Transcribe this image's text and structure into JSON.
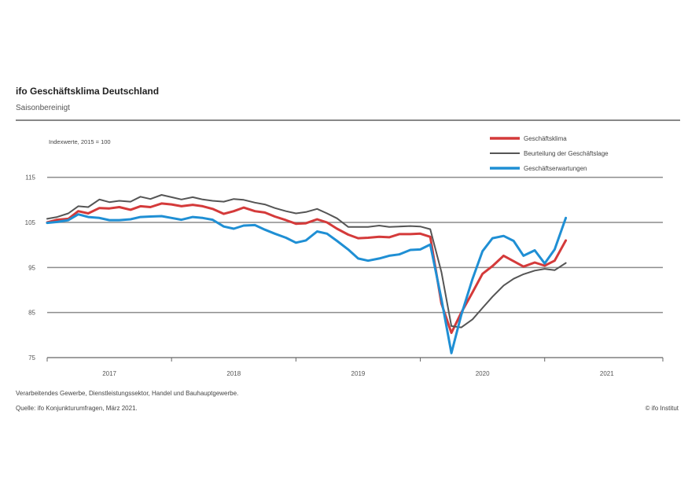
{
  "header": {
    "title": "ifo Geschäftsklima Deutschland",
    "subtitle": "Saisonbereinigt"
  },
  "footer": {
    "note": "Verarbeitendes Gewerbe, Dienstleistungssektor, Handel und Bauhauptgewerbe.",
    "source": "Quelle: ifo Konjunkturumfragen, März 2021.",
    "copyright": "© ifo Institut"
  },
  "chart_data": {
    "type": "line",
    "index_note": "Indexwerte, 2015 = 100",
    "ylim": [
      75,
      120
    ],
    "yticks": [
      75,
      85,
      95,
      105,
      115
    ],
    "ytick_labels": [
      "75",
      "85",
      "95",
      "105",
      "115"
    ],
    "xlim": [
      2017.0,
      2021.95
    ],
    "xticks": [
      2017.5,
      2018.5,
      2019.5,
      2020.5,
      2021.5
    ],
    "xtick_labels": [
      "2017",
      "2018",
      "2019",
      "2020",
      "2021"
    ],
    "grid": true,
    "legend_position": "top-right",
    "series": [
      {
        "name": "Geschäftsklima",
        "color": "#d43a3a",
        "values": [
          [
            2017.0,
            105.0
          ],
          [
            2017.08,
            105.6
          ],
          [
            2017.17,
            105.8
          ],
          [
            2017.25,
            107.5
          ],
          [
            2017.33,
            107.0
          ],
          [
            2017.42,
            108.2
          ],
          [
            2017.5,
            108.1
          ],
          [
            2017.58,
            108.4
          ],
          [
            2017.67,
            107.8
          ],
          [
            2017.75,
            108.6
          ],
          [
            2017.83,
            108.4
          ],
          [
            2017.92,
            109.2
          ],
          [
            2018.0,
            109.0
          ],
          [
            2018.08,
            108.6
          ],
          [
            2018.17,
            108.9
          ],
          [
            2018.25,
            108.6
          ],
          [
            2018.33,
            108.0
          ],
          [
            2018.42,
            106.9
          ],
          [
            2018.5,
            107.5
          ],
          [
            2018.58,
            108.3
          ],
          [
            2018.67,
            107.5
          ],
          [
            2018.75,
            107.2
          ],
          [
            2018.83,
            106.3
          ],
          [
            2018.92,
            105.5
          ],
          [
            2019.0,
            104.7
          ],
          [
            2019.08,
            104.8
          ],
          [
            2019.17,
            105.7
          ],
          [
            2019.25,
            105.0
          ],
          [
            2019.33,
            103.6
          ],
          [
            2019.42,
            102.3
          ],
          [
            2019.5,
            101.5
          ],
          [
            2019.58,
            101.6
          ],
          [
            2019.67,
            101.8
          ],
          [
            2019.75,
            101.7
          ],
          [
            2019.83,
            102.4
          ],
          [
            2019.92,
            102.4
          ],
          [
            2020.0,
            102.5
          ],
          [
            2020.08,
            101.8
          ],
          [
            2020.17,
            87.0
          ],
          [
            2020.25,
            80.5
          ],
          [
            2020.33,
            85.0
          ],
          [
            2020.42,
            89.5
          ],
          [
            2020.5,
            93.6
          ],
          [
            2020.58,
            95.3
          ],
          [
            2020.67,
            97.6
          ],
          [
            2020.75,
            96.4
          ],
          [
            2020.83,
            95.2
          ],
          [
            2020.92,
            96.1
          ],
          [
            2021.0,
            95.4
          ],
          [
            2021.08,
            96.5
          ],
          [
            2021.17,
            101.0
          ]
        ]
      },
      {
        "name": "Beurteilung der Geschäftslage",
        "color": "#555555",
        "values": [
          [
            2017.0,
            105.8
          ],
          [
            2017.08,
            106.2
          ],
          [
            2017.17,
            107.0
          ],
          [
            2017.25,
            108.6
          ],
          [
            2017.33,
            108.4
          ],
          [
            2017.42,
            110.1
          ],
          [
            2017.5,
            109.5
          ],
          [
            2017.58,
            109.8
          ],
          [
            2017.67,
            109.6
          ],
          [
            2017.75,
            110.7
          ],
          [
            2017.83,
            110.2
          ],
          [
            2017.92,
            111.1
          ],
          [
            2018.0,
            110.6
          ],
          [
            2018.08,
            110.1
          ],
          [
            2018.17,
            110.6
          ],
          [
            2018.25,
            110.1
          ],
          [
            2018.33,
            109.8
          ],
          [
            2018.42,
            109.6
          ],
          [
            2018.5,
            110.2
          ],
          [
            2018.58,
            110.0
          ],
          [
            2018.67,
            109.4
          ],
          [
            2018.75,
            109.0
          ],
          [
            2018.83,
            108.2
          ],
          [
            2018.92,
            107.5
          ],
          [
            2019.0,
            107.0
          ],
          [
            2019.08,
            107.3
          ],
          [
            2019.17,
            108.0
          ],
          [
            2019.25,
            107.0
          ],
          [
            2019.33,
            105.9
          ],
          [
            2019.42,
            104.0
          ],
          [
            2019.5,
            104.0
          ],
          [
            2019.58,
            104.0
          ],
          [
            2019.67,
            104.3
          ],
          [
            2019.75,
            104.0
          ],
          [
            2019.83,
            104.1
          ],
          [
            2019.92,
            104.2
          ],
          [
            2020.0,
            104.1
          ],
          [
            2020.08,
            103.5
          ],
          [
            2020.17,
            94.0
          ],
          [
            2020.25,
            82.0
          ],
          [
            2020.33,
            81.7
          ],
          [
            2020.42,
            83.5
          ],
          [
            2020.5,
            86.0
          ],
          [
            2020.58,
            88.5
          ],
          [
            2020.67,
            91.0
          ],
          [
            2020.75,
            92.5
          ],
          [
            2020.83,
            93.5
          ],
          [
            2020.92,
            94.3
          ],
          [
            2021.0,
            94.7
          ],
          [
            2021.08,
            94.4
          ],
          [
            2021.17,
            96.0
          ]
        ]
      },
      {
        "name": "Geschäftserwartungen",
        "color": "#1f8fd4",
        "values": [
          [
            2017.0,
            104.9
          ],
          [
            2017.08,
            105.1
          ],
          [
            2017.17,
            105.5
          ],
          [
            2017.25,
            106.8
          ],
          [
            2017.33,
            106.2
          ],
          [
            2017.42,
            106.0
          ],
          [
            2017.5,
            105.5
          ],
          [
            2017.58,
            105.5
          ],
          [
            2017.67,
            105.7
          ],
          [
            2017.75,
            106.2
          ],
          [
            2017.83,
            106.3
          ],
          [
            2017.92,
            106.4
          ],
          [
            2018.0,
            106.0
          ],
          [
            2018.08,
            105.6
          ],
          [
            2018.17,
            106.2
          ],
          [
            2018.25,
            106.0
          ],
          [
            2018.33,
            105.6
          ],
          [
            2018.42,
            104.1
          ],
          [
            2018.5,
            103.6
          ],
          [
            2018.58,
            104.3
          ],
          [
            2018.67,
            104.4
          ],
          [
            2018.75,
            103.4
          ],
          [
            2018.83,
            102.5
          ],
          [
            2018.92,
            101.6
          ],
          [
            2019.0,
            100.5
          ],
          [
            2019.08,
            101.0
          ],
          [
            2019.17,
            103.0
          ],
          [
            2019.25,
            102.5
          ],
          [
            2019.33,
            100.9
          ],
          [
            2019.42,
            99.0
          ],
          [
            2019.5,
            97.0
          ],
          [
            2019.58,
            96.5
          ],
          [
            2019.67,
            97.0
          ],
          [
            2019.75,
            97.6
          ],
          [
            2019.83,
            97.9
          ],
          [
            2019.92,
            98.9
          ],
          [
            2020.0,
            99.0
          ],
          [
            2020.08,
            100.1
          ],
          [
            2020.17,
            88.0
          ],
          [
            2020.25,
            76.0
          ],
          [
            2020.33,
            84.5
          ],
          [
            2020.42,
            92.5
          ],
          [
            2020.5,
            98.6
          ],
          [
            2020.58,
            101.5
          ],
          [
            2020.67,
            102.0
          ],
          [
            2020.75,
            100.9
          ],
          [
            2020.83,
            97.6
          ],
          [
            2020.92,
            98.8
          ],
          [
            2021.0,
            95.9
          ],
          [
            2021.08,
            99.0
          ],
          [
            2021.17,
            106.0
          ]
        ]
      }
    ]
  }
}
